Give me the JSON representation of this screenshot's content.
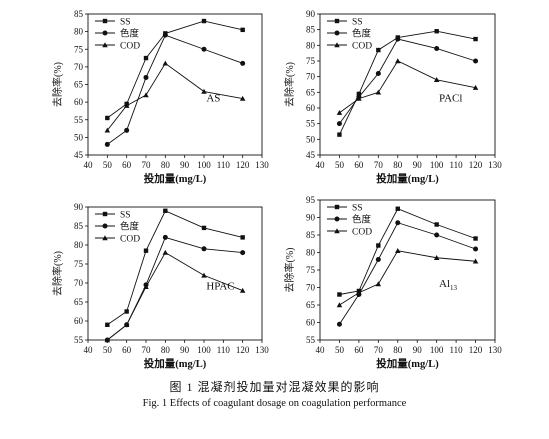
{
  "figure": {
    "caption_cn": "图 1  混凝剂投加量对混凝效果的影响",
    "caption_en": "Fig. 1    Effects of coagulant dosage on coagulation performance"
  },
  "chart_data": [
    {
      "type": "line",
      "title": "AS",
      "xlabel": "投加量(mg/L)",
      "ylabel": "去除率(%)",
      "xlim": [
        40,
        130
      ],
      "ylim": [
        45,
        85
      ],
      "xticks": [
        40,
        50,
        60,
        70,
        80,
        90,
        100,
        110,
        120,
        130
      ],
      "yticks": [
        45,
        50,
        55,
        60,
        65,
        70,
        75,
        80,
        85
      ],
      "grid": false,
      "legend": "top-left",
      "x": [
        50,
        60,
        70,
        80,
        100,
        120
      ],
      "series": [
        {
          "name": "SS",
          "marker": "square",
          "values": [
            55.5,
            59.5,
            72.5,
            79.5,
            83,
            80.5
          ]
        },
        {
          "name": "色度",
          "marker": "circle",
          "values": [
            48,
            52,
            67,
            79,
            75,
            71
          ]
        },
        {
          "name": "COD",
          "marker": "triangle",
          "values": [
            52,
            59,
            62,
            71,
            63,
            61
          ]
        }
      ]
    },
    {
      "type": "line",
      "title": "PACl",
      "xlabel": "投加量(mg/L)",
      "ylabel": "去除率(%)",
      "xlim": [
        40,
        130
      ],
      "ylim": [
        45,
        90
      ],
      "xticks": [
        40,
        50,
        60,
        70,
        80,
        90,
        100,
        110,
        120,
        130
      ],
      "yticks": [
        45,
        50,
        55,
        60,
        65,
        70,
        75,
        80,
        85,
        90
      ],
      "grid": false,
      "legend": "top-left",
      "x": [
        50,
        60,
        70,
        80,
        100,
        120
      ],
      "series": [
        {
          "name": "SS",
          "marker": "square",
          "values": [
            51.5,
            64.5,
            78.5,
            82.5,
            84.5,
            82
          ]
        },
        {
          "name": "色度",
          "marker": "circle",
          "values": [
            55,
            63.5,
            71,
            82,
            79,
            75
          ]
        },
        {
          "name": "COD",
          "marker": "triangle",
          "values": [
            58.5,
            63,
            65,
            75,
            69,
            66.5
          ]
        }
      ]
    },
    {
      "type": "line",
      "title": "HPAC",
      "xlabel": "投加量(mg/L)",
      "ylabel": "去除率(%)",
      "xlim": [
        40,
        130
      ],
      "ylim": [
        55,
        90
      ],
      "xticks": [
        40,
        50,
        60,
        70,
        80,
        90,
        100,
        110,
        120,
        130
      ],
      "yticks": [
        55,
        60,
        65,
        70,
        75,
        80,
        85,
        90
      ],
      "grid": false,
      "legend": "top-left",
      "x": [
        50,
        60,
        70,
        80,
        100,
        120
      ],
      "series": [
        {
          "name": "SS",
          "marker": "square",
          "values": [
            59,
            62.5,
            78.5,
            89,
            84.5,
            82
          ]
        },
        {
          "name": "色度",
          "marker": "circle",
          "values": [
            55,
            59,
            69.5,
            82,
            79,
            78
          ]
        },
        {
          "name": "COD",
          "marker": "triangle",
          "values": [
            55,
            59,
            69,
            78,
            72,
            68
          ]
        }
      ]
    },
    {
      "type": "line",
      "title": "Al13",
      "xlabel": "投加量(mg/L)",
      "ylabel": "去除率(%)",
      "xlim": [
        40,
        130
      ],
      "ylim": [
        55,
        95
      ],
      "xticks": [
        40,
        50,
        60,
        70,
        80,
        90,
        100,
        110,
        120,
        130
      ],
      "yticks": [
        55,
        60,
        65,
        70,
        75,
        80,
        85,
        90,
        95
      ],
      "grid": false,
      "legend": "top-left",
      "x": [
        50,
        60,
        70,
        80,
        100,
        120
      ],
      "series": [
        {
          "name": "SS",
          "marker": "square",
          "values": [
            68,
            69,
            82,
            92.5,
            88,
            84
          ]
        },
        {
          "name": "色度",
          "marker": "circle",
          "values": [
            59.5,
            68,
            78,
            88.5,
            85,
            81
          ]
        },
        {
          "name": "COD",
          "marker": "triangle",
          "values": [
            65,
            68.5,
            71,
            80.5,
            78.5,
            77.5
          ]
        }
      ]
    }
  ]
}
